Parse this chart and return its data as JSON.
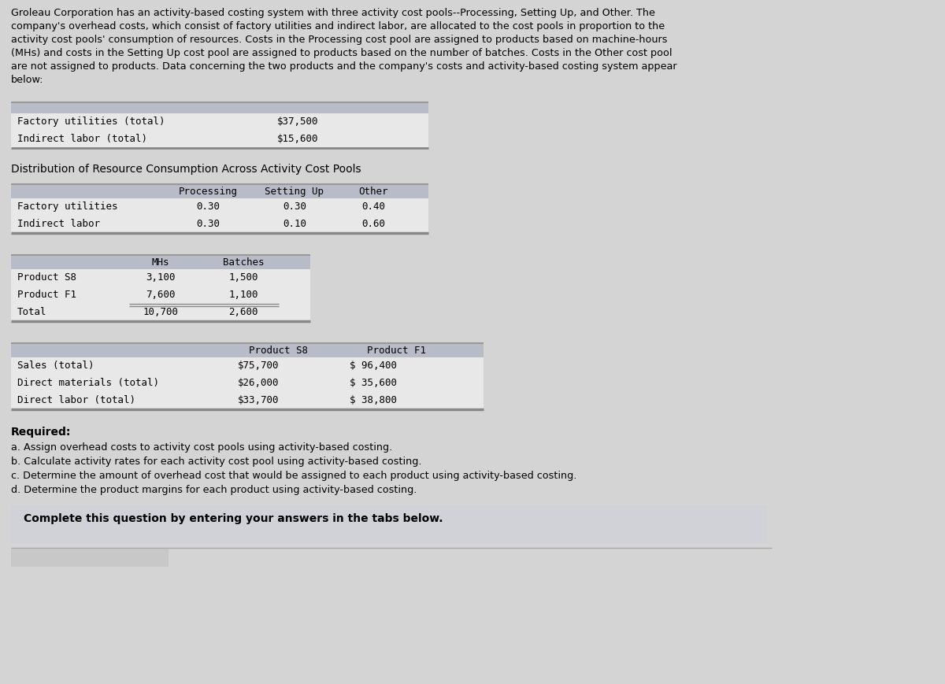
{
  "bg_color": "#d4d4d4",
  "panel_bg": "#e8e8e8",
  "header_bg": "#b8bcc8",
  "black": "#000000",
  "intro_text_lines": [
    "Groleau Corporation has an activity-based costing system with three activity cost pools--Processing, Setting Up, and Other. The",
    "company's overhead costs, which consist of factory utilities and indirect labor, are allocated to the cost pools in proportion to the",
    "activity cost pools' consumption of resources. Costs in the Processing cost pool are assigned to products based on machine-hours",
    "(MHs) and costs in the Setting Up cost pool are assigned to products based on the number of batches. Costs in the Other cost pool",
    "are not assigned to products. Data concerning the two products and the company's costs and activity-based costing system appear",
    "below:"
  ],
  "table1_rows": [
    [
      "Factory utilities (total)",
      "$37,500"
    ],
    [
      "Indirect labor (total)",
      "$15,600"
    ]
  ],
  "dist_title": "Distribution of Resource Consumption Across Activity Cost Pools",
  "table2_header": [
    "",
    "Processing",
    "Setting Up",
    "Other"
  ],
  "table2_rows": [
    [
      "Factory utilities",
      "0.30",
      "0.30",
      "0.40"
    ],
    [
      "Indirect labor",
      "0.30",
      "0.10",
      "0.60"
    ]
  ],
  "table3_header": [
    "",
    "MHs",
    "Batches"
  ],
  "table3_rows": [
    [
      "Product S8",
      "3,100",
      "1,500"
    ],
    [
      "Product F1",
      "7,600",
      "1,100"
    ],
    [
      "Total",
      "10,700",
      "2,600"
    ]
  ],
  "table4_header": [
    "",
    "Product S8",
    "Product F1"
  ],
  "table4_rows": [
    [
      "Sales (total)",
      "$75,700",
      "$ 96,400"
    ],
    [
      "Direct materials (total)",
      "$26,000",
      "$ 35,600"
    ],
    [
      "Direct labor (total)",
      "$33,700",
      "$ 38,800"
    ]
  ],
  "required_text": "Required:",
  "required_items": [
    "a. Assign overhead costs to activity cost pools using activity-based costing.",
    "b. Calculate activity rates for each activity cost pool using activity-based costing.",
    "c. Determine the amount of overhead cost that would be assigned to each product using activity-based costing.",
    "d. Determine the product margins for each product using activity-based costing."
  ],
  "complete_text": "Complete this question by entering your answers in the tabs below."
}
